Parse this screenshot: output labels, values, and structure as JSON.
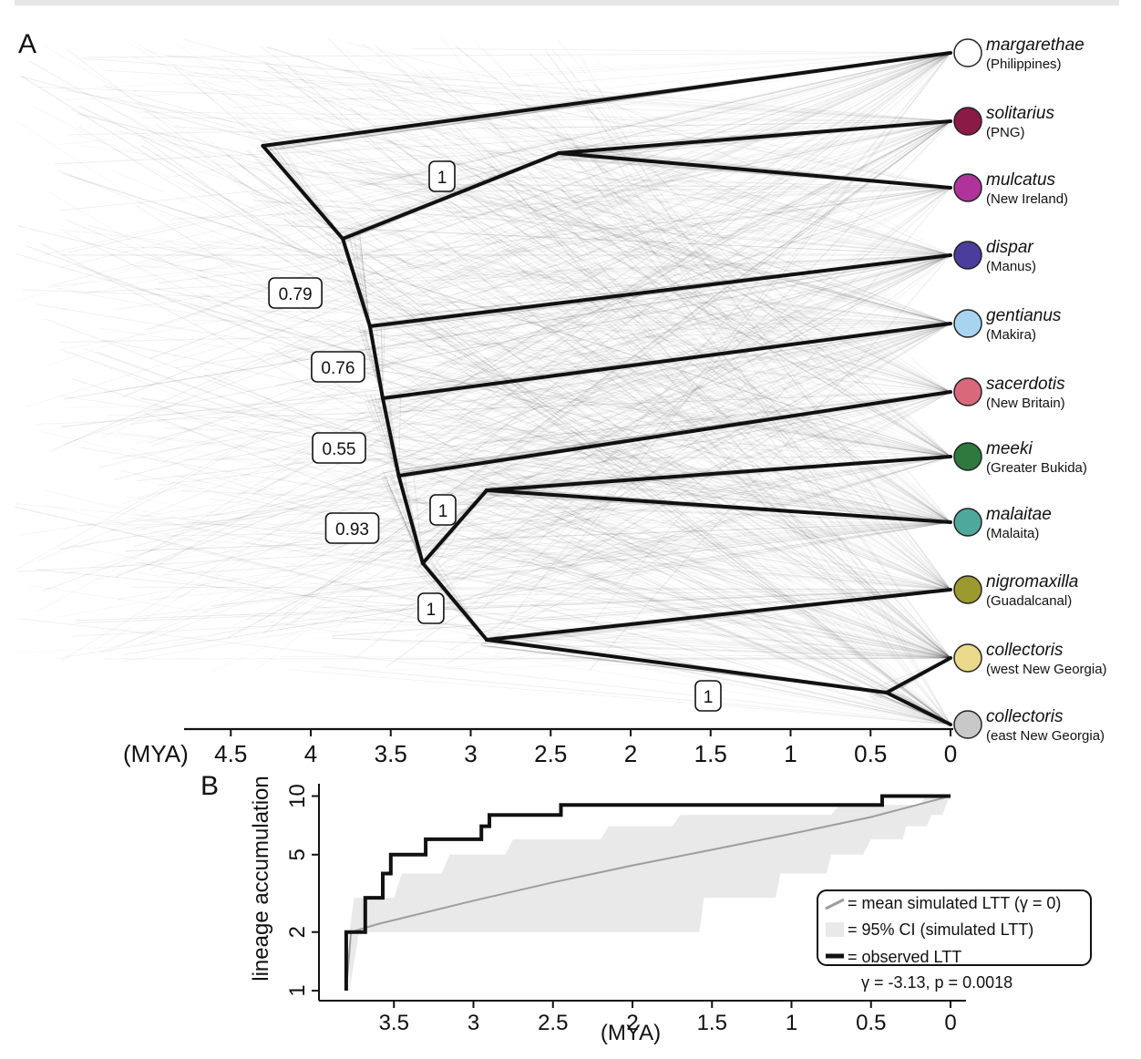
{
  "panel_a": {
    "letter": "A",
    "axis_unit": "(MYA)",
    "axis_ticks": [
      {
        "value": 4.5,
        "label": "4.5"
      },
      {
        "value": 4,
        "label": "4"
      },
      {
        "value": 3.5,
        "label": "3.5"
      },
      {
        "value": 3,
        "label": "3"
      },
      {
        "value": 2.5,
        "label": "2.5"
      },
      {
        "value": 2,
        "label": "2"
      },
      {
        "value": 1.5,
        "label": "1.5"
      },
      {
        "value": 1,
        "label": "1"
      },
      {
        "value": 0.5,
        "label": "0.5"
      },
      {
        "value": 0,
        "label": "0"
      }
    ],
    "tips": [
      {
        "id": "margarethae",
        "species": "margarethae",
        "location": "(Philippines)",
        "color": "#ffffff"
      },
      {
        "id": "solitarius",
        "species": "solitarius",
        "location": "(PNG)",
        "color": "#8b1a47"
      },
      {
        "id": "mulcatus",
        "species": "mulcatus",
        "location": "(New Ireland)",
        "color": "#b0339b"
      },
      {
        "id": "dispar",
        "species": "dispar",
        "location": "(Manus)",
        "color": "#4b3d9e"
      },
      {
        "id": "gentianus",
        "species": "gentianus",
        "location": "(Makira)",
        "color": "#a8d4f2"
      },
      {
        "id": "sacerdotis",
        "species": "sacerdotis",
        "location": "(New Britain)",
        "color": "#d9687a"
      },
      {
        "id": "meeki",
        "species": "meeki",
        "location": "(Greater Bukida)",
        "color": "#2e7a3e"
      },
      {
        "id": "malaitae",
        "species": "malaitae",
        "location": "(Malaita)",
        "color": "#4fa89c"
      },
      {
        "id": "nigromaxilla",
        "species": "nigromaxilla",
        "location": "(Guadalcanal)",
        "color": "#9c9a2f"
      },
      {
        "id": "collectoris-west",
        "species": "collectoris",
        "location": "(west New Georgia)",
        "color": "#ead98a"
      },
      {
        "id": "collectoris-east",
        "species": "collectoris",
        "location": "(east New Georgia)",
        "color": "#c8c8c8"
      }
    ],
    "nodes": [
      {
        "id": "root",
        "age": 4.3
      },
      {
        "id": "n2",
        "age": 3.8
      },
      {
        "id": "sol_mul",
        "age": 2.45
      },
      {
        "id": "n3",
        "age": 3.63
      },
      {
        "id": "n4",
        "age": 3.55
      },
      {
        "id": "n5",
        "age": 3.45
      },
      {
        "id": "n6",
        "age": 3.3
      },
      {
        "id": "mee_mal",
        "age": 2.9
      },
      {
        "id": "nig_col",
        "age": 2.9
      },
      {
        "id": "col",
        "age": 0.4
      }
    ],
    "support": [
      {
        "label": "1",
        "node": "sol_mul"
      },
      {
        "label": "0.79",
        "node": "n2"
      },
      {
        "label": "0.76",
        "node": "n3"
      },
      {
        "label": "0.55",
        "node": "n4"
      },
      {
        "label": "0.93",
        "node": "n5"
      },
      {
        "label": "1",
        "node": "mee_mal"
      },
      {
        "label": "1",
        "node": "n6"
      },
      {
        "label": "1",
        "node": "nig_col"
      }
    ]
  },
  "panel_b": {
    "letter": "B",
    "ylabel": "lineage accumulation",
    "xlabel": "(MYA)",
    "x_ticks": [
      {
        "value": 3.5,
        "label": "3.5"
      },
      {
        "value": 3,
        "label": "3"
      },
      {
        "value": 2.5,
        "label": "2.5"
      },
      {
        "value": 2,
        "label": "2"
      },
      {
        "value": 1.5,
        "label": "1.5"
      },
      {
        "value": 1,
        "label": "1"
      },
      {
        "value": 0.5,
        "label": "0.5"
      },
      {
        "value": 0,
        "label": "0"
      }
    ],
    "y_ticks": [
      {
        "value": 1,
        "label": "1"
      },
      {
        "value": 2,
        "label": "2"
      },
      {
        "value": 5,
        "label": "5"
      },
      {
        "value": 10,
        "label": "10"
      }
    ],
    "legend": {
      "mean": "= mean simulated LTT (γ = 0)",
      "ci": "= 95% CI (simulated LTT)",
      "observed": "= observed LTT",
      "stats": "γ = -3.13,  p = 0.0018"
    }
  },
  "chart_data": {
    "type": "line",
    "xlabel": "(MYA)",
    "ylabel": "lineage accumulation",
    "x_reversed": true,
    "y_scale": "log",
    "xlim": [
      3.85,
      -0.15
    ],
    "ylim": [
      0.9,
      11
    ],
    "series": [
      {
        "name": "observed LTT",
        "color": "#111111",
        "step": true,
        "points": [
          [
            3.8,
            1
          ],
          [
            3.8,
            2
          ],
          [
            3.68,
            2
          ],
          [
            3.68,
            3
          ],
          [
            3.57,
            3
          ],
          [
            3.57,
            4
          ],
          [
            3.52,
            4
          ],
          [
            3.52,
            5
          ],
          [
            3.3,
            5
          ],
          [
            3.3,
            6
          ],
          [
            2.95,
            6
          ],
          [
            2.95,
            7
          ],
          [
            2.9,
            7
          ],
          [
            2.9,
            8
          ],
          [
            2.45,
            8
          ],
          [
            2.45,
            9
          ],
          [
            0.43,
            9
          ],
          [
            0.43,
            10
          ],
          [
            0,
            10
          ]
        ]
      },
      {
        "name": "mean simulated LTT (γ = 0)",
        "color": "#9e9e9e",
        "points": [
          [
            3.8,
            1
          ],
          [
            3.77,
            2
          ],
          [
            3.6,
            2.2
          ],
          [
            3.0,
            2.9
          ],
          [
            2.5,
            3.6
          ],
          [
            2.0,
            4.4
          ],
          [
            1.5,
            5.3
          ],
          [
            1.0,
            6.4
          ],
          [
            0.5,
            7.8
          ],
          [
            0.0,
            10
          ]
        ]
      },
      {
        "name": "95% CI (simulated LTT)",
        "color": "#e9e9e9",
        "band": true,
        "upper": [
          [
            3.78,
            2
          ],
          [
            3.75,
            3
          ],
          [
            3.5,
            3
          ],
          [
            3.45,
            4
          ],
          [
            3.2,
            4
          ],
          [
            3.15,
            5
          ],
          [
            2.8,
            5
          ],
          [
            2.75,
            6
          ],
          [
            2.2,
            6
          ],
          [
            2.15,
            7
          ],
          [
            1.75,
            7
          ],
          [
            1.7,
            8
          ],
          [
            0.75,
            8
          ],
          [
            0.7,
            9
          ],
          [
            0.2,
            9
          ],
          [
            0.15,
            10
          ],
          [
            0,
            10
          ]
        ],
        "lower": [
          [
            3.78,
            1
          ],
          [
            3.72,
            2
          ],
          [
            1.58,
            2
          ],
          [
            1.55,
            3
          ],
          [
            1.1,
            3
          ],
          [
            1.07,
            4
          ],
          [
            0.78,
            4
          ],
          [
            0.75,
            5
          ],
          [
            0.55,
            5
          ],
          [
            0.5,
            6
          ],
          [
            0.3,
            6
          ],
          [
            0.28,
            7
          ],
          [
            0.15,
            7
          ],
          [
            0.12,
            8
          ],
          [
            0.05,
            8
          ],
          [
            0.03,
            9
          ],
          [
            0,
            10
          ]
        ]
      }
    ]
  }
}
